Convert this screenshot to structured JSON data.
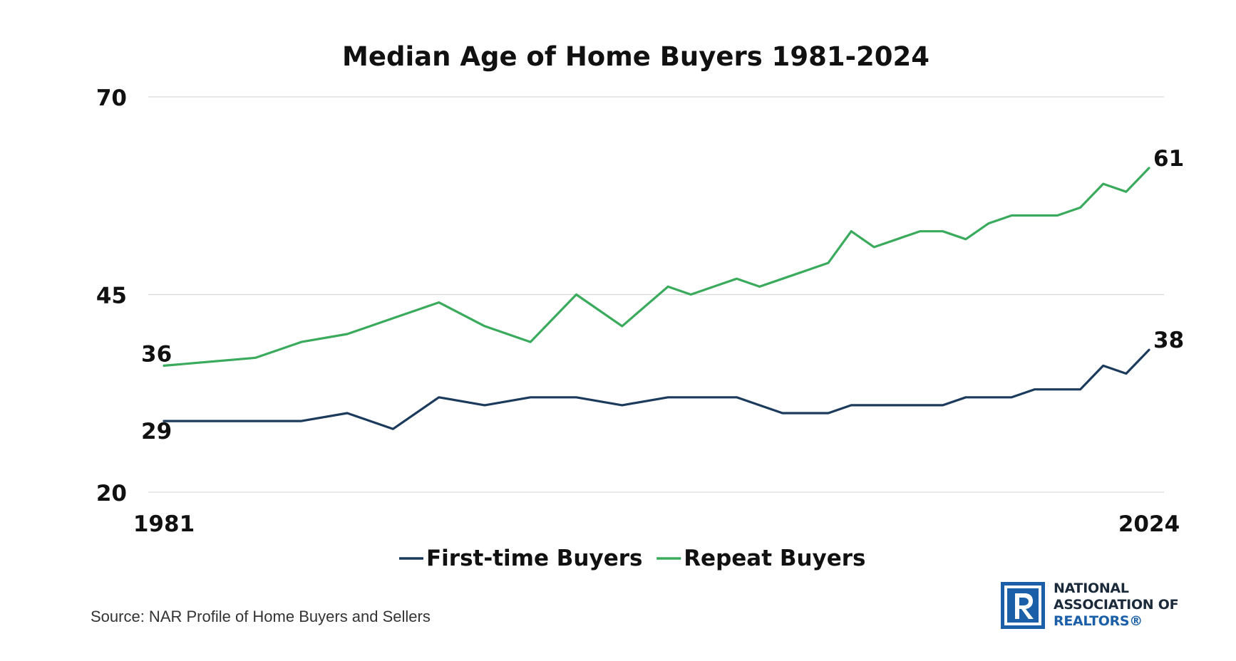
{
  "chart_data": {
    "type": "line",
    "title": "Median Age of Home Buyers 1981-2024",
    "xlabel": "",
    "ylabel": "",
    "ylim": [
      20,
      70
    ],
    "yticks": [
      "20",
      "45",
      "70"
    ],
    "xtick_labels": [
      "1981",
      "2024"
    ],
    "grid": "horizontal",
    "legend_position": "bottom",
    "x": [
      1981,
      1985,
      1987,
      1989,
      1991,
      1993,
      1995,
      1997,
      1999,
      2001,
      2003,
      2004,
      2005,
      2006,
      2007,
      2008,
      2009,
      2010,
      2011,
      2012,
      2013,
      2014,
      2015,
      2016,
      2017,
      2018,
      2019,
      2020,
      2021,
      2022,
      2023,
      2024
    ],
    "series": [
      {
        "name": "First-time Buyers",
        "color": "#1b3a5c",
        "values": [
          29,
          29,
          29,
          30,
          28,
          32,
          31,
          32,
          32,
          31,
          32,
          32,
          32,
          32,
          31,
          30,
          30,
          30,
          31,
          31,
          31,
          31,
          31,
          32,
          32,
          32,
          33,
          33,
          33,
          36,
          35,
          38
        ],
        "start_label": "29",
        "end_label": "38"
      },
      {
        "name": "Repeat Buyers",
        "color": "#3aaa5c",
        "values": [
          36,
          37,
          39,
          40,
          42,
          44,
          41,
          39,
          45,
          41,
          46,
          45,
          46,
          47,
          46,
          47,
          48,
          49,
          53,
          51,
          52,
          53,
          53,
          52,
          54,
          55,
          55,
          55,
          56,
          59,
          58,
          61
        ],
        "start_label": "36",
        "end_label": "61"
      }
    ]
  },
  "source": "Source: NAR Profile of Home Buyers and Sellers",
  "logo": {
    "line1": "NATIONAL",
    "line2": "ASSOCIATION OF",
    "line3": "REALTORS®",
    "colors": {
      "mark": "#1a5fa8",
      "text": "#1b2a3a",
      "realtors": "#1a5fa8"
    }
  }
}
